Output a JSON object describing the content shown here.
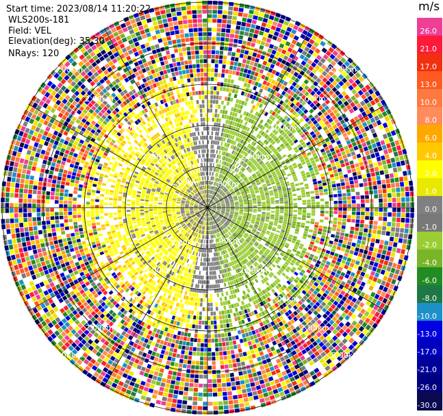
{
  "header": {
    "start_time": "Start time: 2023/08/14 11:20:22",
    "instrument": "WLS200s-181",
    "field": "Field: VEL",
    "elevation": "Elevation(deg): 35.30",
    "nrays": "NRays: 120"
  },
  "colorbar": {
    "unit": "m/s",
    "levels": [
      {
        "label": "26.0",
        "color": "#ee3e96"
      },
      {
        "label": "21.0",
        "color": "#ff1a3a"
      },
      {
        "label": "17.0",
        "color": "#f03010"
      },
      {
        "label": "13.0",
        "color": "#ff5a20"
      },
      {
        "label": "10.0",
        "color": "#ff7a40"
      },
      {
        "label": "8.0",
        "color": "#ff8c5a"
      },
      {
        "label": "6.0",
        "color": "#ffa800"
      },
      {
        "label": "4.0",
        "color": "#ffc800"
      },
      {
        "label": "2.0",
        "color": "#ffff00"
      },
      {
        "label": "1.0",
        "color": "#e8e800"
      },
      {
        "label": "0.0",
        "color": "#808080"
      },
      {
        "label": "-1.0",
        "color": "#787878"
      },
      {
        "label": "-2.0",
        "color": "#9acd32"
      },
      {
        "label": "-4.0",
        "color": "#7ab428"
      },
      {
        "label": "-6.0",
        "color": "#228b22"
      },
      {
        "label": "-8.0",
        "color": "#1e7846"
      },
      {
        "label": "-10.0",
        "color": "#1e90c8"
      },
      {
        "label": "-13.0",
        "color": "#0000e0"
      },
      {
        "label": "-17.0",
        "color": "#0000c0"
      },
      {
        "label": "-21.0",
        "color": "#00009a"
      },
      {
        "label": "-26.0",
        "color": "#000080"
      },
      {
        "label": "-30.0",
        "color": "#0a0a50"
      }
    ]
  },
  "chart_data": {
    "type": "heatmap",
    "title": "",
    "field": "VEL",
    "unit": "m/s",
    "range_ring_labels": [
      "2.00km",
      "2.00km",
      "2.00km",
      "2.00km",
      "2.00km",
      "2.00km",
      "2.00km",
      "2.00km",
      "2.00km",
      "2.00km",
      "2.00km",
      "2.00km",
      "2.00km",
      "2.00km",
      "2.00km",
      "2.00km",
      "2.00km",
      "2.00km",
      "2.00km",
      "2.00km"
    ],
    "nrays": 120,
    "grid": true
  }
}
